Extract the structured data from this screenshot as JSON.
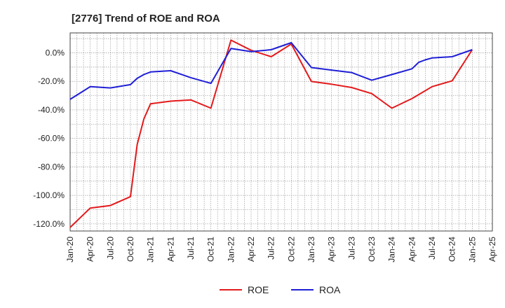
{
  "chart_data": {
    "type": "line",
    "title": "[2776]  Trend of ROE and ROA",
    "xlabel": "",
    "ylabel": "",
    "x_ticks": [
      "Jan-20",
      "Apr-20",
      "Jul-20",
      "Oct-20",
      "Jan-21",
      "Apr-21",
      "Jul-21",
      "Oct-21",
      "Jan-22",
      "Apr-22",
      "Jul-22",
      "Oct-22",
      "Jan-23",
      "Apr-23",
      "Jul-23",
      "Oct-23",
      "Jan-24",
      "Apr-24",
      "Jul-24",
      "Oct-24",
      "Jan-25",
      "Apr-25"
    ],
    "y_ticks": [
      0,
      -20,
      -40,
      -60,
      -80,
      -100,
      -120
    ],
    "y_tick_labels": [
      "0.0%",
      "-20.0%",
      "-40.0%",
      "-60.0%",
      "-80.0%",
      "-100.0%",
      "-120.0%"
    ],
    "ylim": [
      -125,
      14
    ],
    "grid": true,
    "legend": "bottom-center",
    "series": [
      {
        "name": "ROE",
        "color": "#e31a1c",
        "points": [
          [
            "Jan-20",
            -122.5
          ],
          [
            "Apr-20",
            -108.9
          ],
          [
            "Jul-20",
            -107.1
          ],
          [
            "Oct-20",
            -100.9
          ],
          [
            "Nov-20",
            -64.3
          ],
          [
            "Dec-20",
            -46.4
          ],
          [
            "Jan-21",
            -35.7
          ],
          [
            "Apr-21",
            -33.9
          ],
          [
            "Jul-21",
            -33.0
          ],
          [
            "Oct-21",
            -38.8
          ],
          [
            "Jan-22",
            8.9
          ],
          [
            "Apr-22",
            1.8
          ],
          [
            "Jul-22",
            -2.7
          ],
          [
            "Oct-22",
            6.2
          ],
          [
            "Jan-23",
            -20.1
          ],
          [
            "Apr-23",
            -22.0
          ],
          [
            "Jul-23",
            -24.3
          ],
          [
            "Oct-23",
            -28.6
          ],
          [
            "Jan-24",
            -38.8
          ],
          [
            "Apr-24",
            -32.1
          ],
          [
            "Jul-24",
            -23.7
          ],
          [
            "Oct-24",
            -19.6
          ],
          [
            "Jan-25",
            2.2
          ]
        ]
      },
      {
        "name": "ROA",
        "color": "#1f1fd6",
        "points": [
          [
            "Jan-20",
            -32.6
          ],
          [
            "Apr-20",
            -23.7
          ],
          [
            "Jul-20",
            -24.6
          ],
          [
            "Oct-20",
            -22.3
          ],
          [
            "Nov-20",
            -17.9
          ],
          [
            "Dec-20",
            -15.2
          ],
          [
            "Jan-21",
            -13.4
          ],
          [
            "Apr-21",
            -12.5
          ],
          [
            "Jul-21",
            -17.4
          ],
          [
            "Oct-21",
            -21.4
          ],
          [
            "Jan-22",
            3.1
          ],
          [
            "Apr-22",
            0.9
          ],
          [
            "Jul-22",
            2.2
          ],
          [
            "Oct-22",
            7.1
          ],
          [
            "Jan-23",
            -10.3
          ],
          [
            "Apr-23",
            -12.1
          ],
          [
            "Jul-23",
            -13.8
          ],
          [
            "Oct-23",
            -19.2
          ],
          [
            "Jan-24",
            -15.2
          ],
          [
            "Apr-24",
            -11.2
          ],
          [
            "May-24",
            -6.7
          ],
          [
            "Jun-24",
            -4.9
          ],
          [
            "Jul-24",
            -3.6
          ],
          [
            "Oct-24",
            -2.7
          ],
          [
            "Jan-25",
            2.2
          ]
        ]
      }
    ]
  }
}
